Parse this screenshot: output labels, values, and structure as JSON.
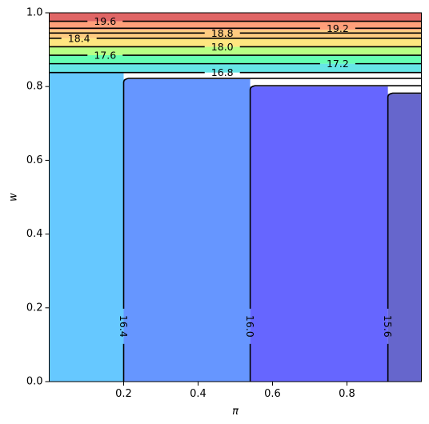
{
  "chart_data": {
    "type": "contour",
    "title": "",
    "xlabel": "π",
    "ylabel": "w",
    "xlim": [
      0.0,
      1.0
    ],
    "ylim": [
      0.0,
      1.0
    ],
    "xticks": [
      "0.2",
      "0.4",
      "0.6",
      "0.8"
    ],
    "yticks": [
      "0.0",
      "0.2",
      "0.4",
      "0.6",
      "0.8",
      "1.0"
    ],
    "grid": false,
    "legend": "none",
    "horizontal_bands": [
      {
        "y0": 0.838,
        "y1": 0.862,
        "color": "#66e6e6"
      },
      {
        "y0": 0.862,
        "y1": 0.885,
        "color": "#66ffb3"
      },
      {
        "y0": 0.885,
        "y1": 0.908,
        "color": "#b8ff85"
      },
      {
        "y0": 0.908,
        "y1": 0.931,
        "color": "#ffe680"
      },
      {
        "y0": 0.931,
        "y1": 0.954,
        "color": "#ffcc80"
      },
      {
        "y0": 0.954,
        "y1": 0.977,
        "color": "#ff9f7a"
      },
      {
        "y0": 0.977,
        "y1": 1.0,
        "color": "#e06666"
      }
    ],
    "vertical_regions": [
      {
        "x0": 0.0,
        "x1": 0.2,
        "top": 0.838,
        "color": "#66c8ff"
      },
      {
        "x0": 0.2,
        "x1": 0.54,
        "top": 0.82,
        "color": "#6696ff"
      },
      {
        "x0": 0.54,
        "x1": 0.91,
        "top": 0.8,
        "color": "#6666ff"
      },
      {
        "x0": 0.91,
        "x1": 1.0,
        "top": 0.78,
        "color": "#6666cc"
      }
    ],
    "horizontal_contours": [
      {
        "level": "16.8",
        "y": 0.838,
        "label_x": 0.465
      },
      {
        "level": "17.2",
        "y": 0.862,
        "label_x": 0.775
      },
      {
        "level": "17.6",
        "y": 0.885,
        "label_x": 0.15
      },
      {
        "level": "18.0",
        "y": 0.908,
        "label_x": 0.465
      },
      {
        "level": "18.4",
        "y": 0.931,
        "label_x": 0.08
      },
      {
        "level": "18.8",
        "y": 0.945,
        "label_x": 0.465
      },
      {
        "level": "19.2",
        "y": 0.958,
        "label_x": 0.775
      },
      {
        "level": "19.6",
        "y": 0.977,
        "label_x": 0.15
      }
    ],
    "vertical_contours": [
      {
        "level": "16.4",
        "x": 0.2,
        "top": 0.82,
        "label_y": 0.15
      },
      {
        "level": "16.0",
        "x": 0.54,
        "top": 0.8,
        "label_y": 0.15
      },
      {
        "level": "15.6",
        "x": 0.91,
        "top": 0.78,
        "label_y": 0.15
      }
    ]
  }
}
